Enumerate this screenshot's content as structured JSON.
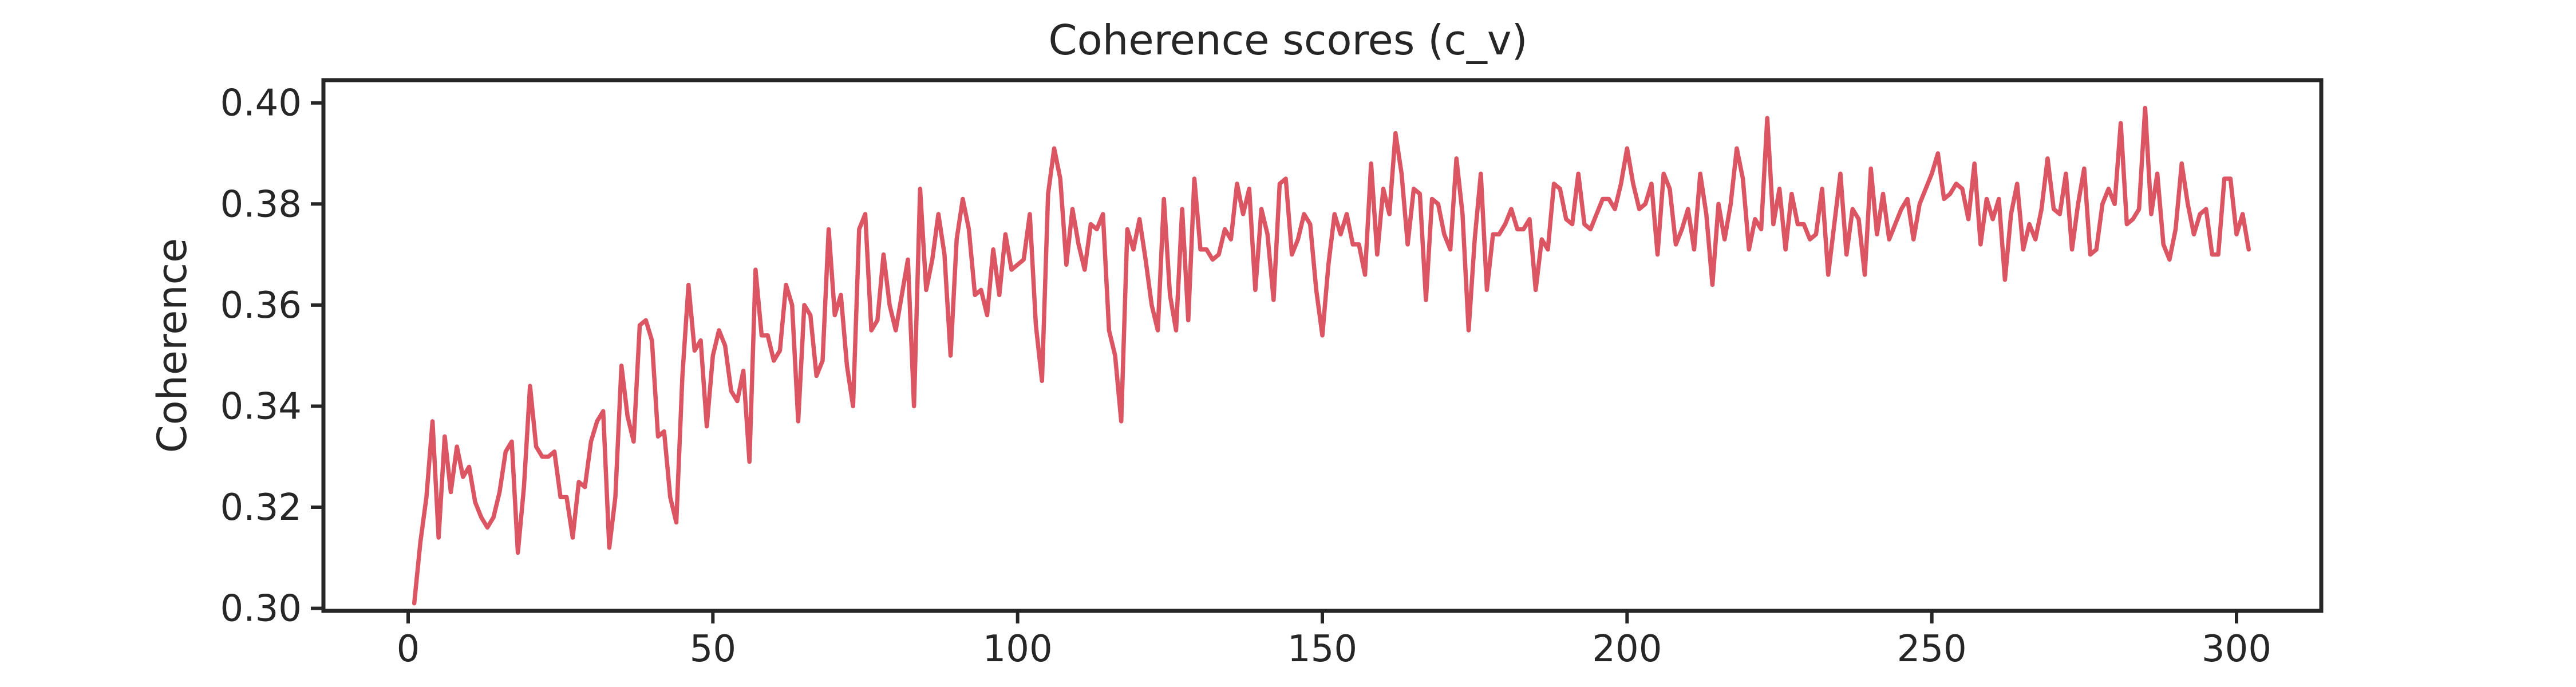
{
  "chart_data": {
    "type": "line",
    "title": "Coherence scores (c_v)",
    "xlabel": "",
    "ylabel": "Coherence",
    "xlim": [
      -13.9,
      313.9
    ],
    "ylim": [
      0.2995,
      0.4045
    ],
    "xticks": [
      0,
      50,
      100,
      150,
      200,
      250,
      300
    ],
    "yticks": [
      0.3,
      0.32,
      0.34,
      0.36,
      0.38,
      0.4
    ],
    "ytick_labels": [
      "0.30",
      "0.32",
      "0.34",
      "0.36",
      "0.38",
      "0.40"
    ],
    "grid": false,
    "legend": "none",
    "series": [
      {
        "color": "#dc5563",
        "x_start": 1,
        "x_step": 1,
        "values": [
          0.301,
          0.313,
          0.322,
          0.337,
          0.314,
          0.334,
          0.323,
          0.332,
          0.326,
          0.328,
          0.321,
          0.318,
          0.316,
          0.318,
          0.323,
          0.331,
          0.333,
          0.311,
          0.324,
          0.344,
          0.332,
          0.33,
          0.33,
          0.331,
          0.322,
          0.322,
          0.314,
          0.325,
          0.324,
          0.333,
          0.337,
          0.339,
          0.312,
          0.322,
          0.348,
          0.338,
          0.333,
          0.356,
          0.357,
          0.353,
          0.334,
          0.335,
          0.322,
          0.317,
          0.346,
          0.364,
          0.351,
          0.353,
          0.336,
          0.35,
          0.355,
          0.352,
          0.343,
          0.341,
          0.347,
          0.329,
          0.367,
          0.354,
          0.354,
          0.349,
          0.351,
          0.364,
          0.36,
          0.337,
          0.36,
          0.358,
          0.346,
          0.349,
          0.375,
          0.358,
          0.362,
          0.348,
          0.34,
          0.375,
          0.378,
          0.355,
          0.357,
          0.37,
          0.36,
          0.355,
          0.362,
          0.369,
          0.34,
          0.383,
          0.363,
          0.369,
          0.378,
          0.37,
          0.35,
          0.373,
          0.381,
          0.375,
          0.362,
          0.363,
          0.358,
          0.371,
          0.362,
          0.374,
          0.367,
          0.368,
          0.369,
          0.378,
          0.356,
          0.345,
          0.382,
          0.391,
          0.385,
          0.368,
          0.379,
          0.372,
          0.367,
          0.376,
          0.375,
          0.378,
          0.355,
          0.35,
          0.337,
          0.375,
          0.371,
          0.377,
          0.369,
          0.36,
          0.355,
          0.381,
          0.362,
          0.355,
          0.379,
          0.357,
          0.385,
          0.371,
          0.371,
          0.369,
          0.37,
          0.375,
          0.373,
          0.384,
          0.378,
          0.383,
          0.363,
          0.379,
          0.374,
          0.361,
          0.384,
          0.385,
          0.37,
          0.373,
          0.378,
          0.376,
          0.363,
          0.354,
          0.368,
          0.378,
          0.374,
          0.378,
          0.372,
          0.372,
          0.366,
          0.388,
          0.37,
          0.383,
          0.378,
          0.394,
          0.386,
          0.372,
          0.383,
          0.382,
          0.361,
          0.381,
          0.38,
          0.374,
          0.371,
          0.389,
          0.378,
          0.355,
          0.373,
          0.386,
          0.363,
          0.374,
          0.374,
          0.376,
          0.379,
          0.375,
          0.375,
          0.377,
          0.363,
          0.373,
          0.371,
          0.384,
          0.383,
          0.377,
          0.376,
          0.386,
          0.376,
          0.375,
          0.378,
          0.381,
          0.381,
          0.379,
          0.384,
          0.391,
          0.384,
          0.379,
          0.38,
          0.384,
          0.37,
          0.386,
          0.383,
          0.372,
          0.375,
          0.379,
          0.371,
          0.386,
          0.378,
          0.364,
          0.38,
          0.373,
          0.38,
          0.391,
          0.385,
          0.371,
          0.377,
          0.375,
          0.397,
          0.376,
          0.383,
          0.371,
          0.382,
          0.376,
          0.376,
          0.373,
          0.374,
          0.383,
          0.366,
          0.376,
          0.386,
          0.37,
          0.379,
          0.377,
          0.366,
          0.387,
          0.374,
          0.382,
          0.373,
          0.376,
          0.379,
          0.381,
          0.373,
          0.38,
          0.383,
          0.386,
          0.39,
          0.381,
          0.382,
          0.384,
          0.383,
          0.377,
          0.388,
          0.372,
          0.381,
          0.377,
          0.381,
          0.365,
          0.378,
          0.384,
          0.371,
          0.376,
          0.373,
          0.379,
          0.389,
          0.379,
          0.378,
          0.386,
          0.371,
          0.38,
          0.387,
          0.37,
          0.371,
          0.38,
          0.383,
          0.38,
          0.396,
          0.376,
          0.377,
          0.379,
          0.399,
          0.378,
          0.386,
          0.372,
          0.369,
          0.375,
          0.388,
          0.38,
          0.374,
          0.378,
          0.379,
          0.37,
          0.37,
          0.385,
          0.385,
          0.374,
          0.378,
          0.371
        ]
      }
    ]
  }
}
